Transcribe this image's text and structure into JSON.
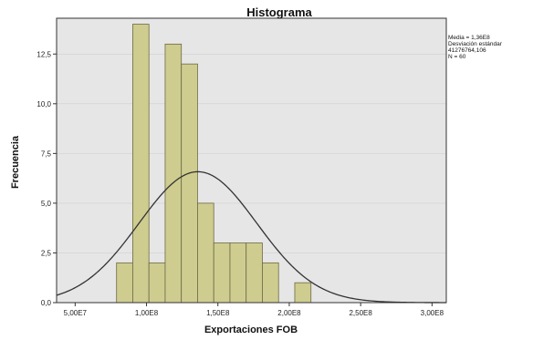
{
  "chart_data": {
    "type": "bar",
    "title": "Histograma",
    "xlabel": "Exportaciones FOB",
    "ylabel": "Frecuencia",
    "xlim": [
      37000000,
      310000000
    ],
    "ylim": [
      0,
      14.3
    ],
    "x_ticks": [
      {
        "value": 50000000,
        "label": "5,00E7"
      },
      {
        "value": 100000000,
        "label": "1,00E8"
      },
      {
        "value": 150000000,
        "label": "1,50E8"
      },
      {
        "value": 200000000,
        "label": "2,00E8"
      },
      {
        "value": 250000000,
        "label": "2,50E8"
      },
      {
        "value": 300000000,
        "label": "3,00E8"
      }
    ],
    "y_ticks": [
      {
        "value": 0,
        "label": "0,0"
      },
      {
        "value": 2.5,
        "label": "2,5"
      },
      {
        "value": 5,
        "label": "5,0"
      },
      {
        "value": 7.5,
        "label": "7,5"
      },
      {
        "value": 10,
        "label": "10,0"
      },
      {
        "value": 12.5,
        "label": "12,5"
      }
    ],
    "bin_width": 11350000,
    "bins": [
      {
        "start": 79000000,
        "count": 2
      },
      {
        "start": 90350000,
        "count": 14
      },
      {
        "start": 101700000,
        "count": 2
      },
      {
        "start": 113050000,
        "count": 13
      },
      {
        "start": 124400000,
        "count": 12
      },
      {
        "start": 135750000,
        "count": 5
      },
      {
        "start": 147100000,
        "count": 3
      },
      {
        "start": 158450000,
        "count": 3
      },
      {
        "start": 169800000,
        "count": 3
      },
      {
        "start": 181150000,
        "count": 2
      },
      {
        "start": 203850000,
        "count": 1
      }
    ],
    "normal_curve": {
      "mean": 136000000,
      "sd": 41276764.1,
      "n": 60
    },
    "stats_box": [
      "Media = 1,36E8",
      "Desviación estándar",
      "41276764,106",
      "N = 60"
    ],
    "colors": {
      "bar_fill": "#cfcc90",
      "bar_stroke": "#6b6a45",
      "plot_bg": "#e6e6e6",
      "curve": "#333333"
    }
  }
}
